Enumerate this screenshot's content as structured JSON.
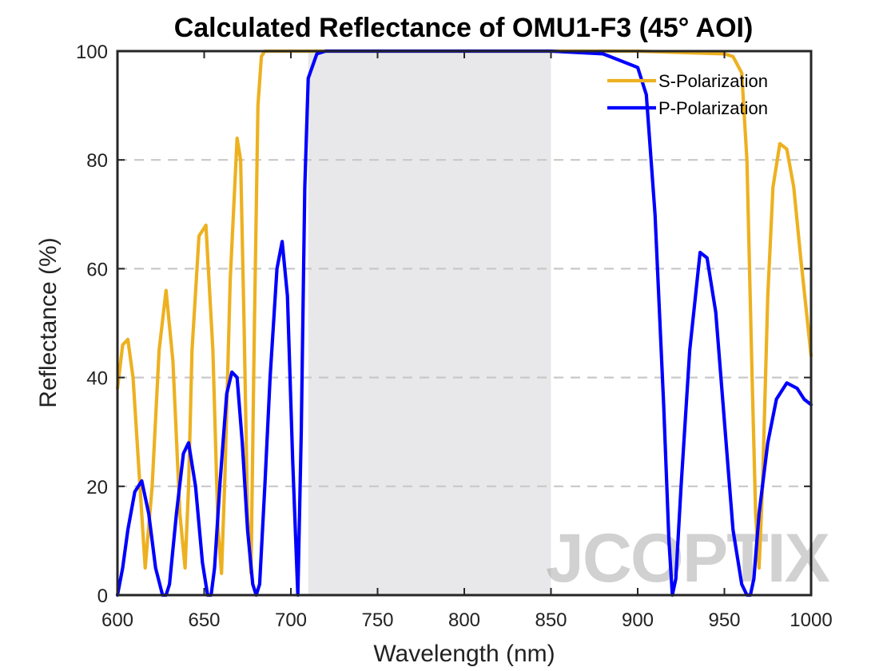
{
  "chart_data": {
    "type": "line",
    "title": "Calculated Reflectance of OMU1-F3 (45° AOI)",
    "xlabel": "Wavelength (nm)",
    "ylabel": "Reflectance (%)",
    "xlim": [
      600,
      1000
    ],
    "ylim": [
      0,
      100
    ],
    "xticks": [
      600,
      650,
      700,
      750,
      800,
      850,
      900,
      950,
      1000
    ],
    "yticks": [
      0,
      20,
      40,
      60,
      80,
      100
    ],
    "grid": "horizontal dashed",
    "legend_position": "top-right",
    "shaded_region": {
      "x": [
        710,
        850
      ],
      "color": "#e8e8ea"
    },
    "watermark": "JCOPTIX",
    "series": [
      {
        "name": "S-Polarization",
        "color": "#edb120",
        "x": [
          600,
          603,
          606,
          609,
          612,
          616,
          620,
          624,
          628,
          632,
          636,
          639,
          641,
          643,
          647,
          651,
          655,
          658,
          660,
          662,
          665,
          669,
          671,
          673,
          675,
          677,
          679,
          681,
          683,
          685,
          690,
          700,
          750,
          800,
          850,
          900,
          950,
          955,
          960,
          963,
          966,
          968,
          970,
          972,
          975,
          978,
          982,
          986,
          990,
          994,
          998,
          1000
        ],
        "y": [
          38,
          46,
          47,
          40,
          25,
          5,
          20,
          45,
          56,
          43,
          15,
          5,
          20,
          45,
          66,
          68,
          45,
          12,
          4,
          22,
          58,
          84,
          80,
          50,
          15,
          4,
          50,
          90,
          99,
          100,
          100,
          100,
          100,
          100,
          100,
          100,
          99.5,
          99,
          96,
          80,
          40,
          15,
          5,
          20,
          55,
          75,
          83,
          82,
          75,
          62,
          50,
          44
        ]
      },
      {
        "name": "P-Polarization",
        "color": "#0000ff",
        "x": [
          600,
          603,
          606,
          610,
          614,
          618,
          622,
          626,
          628,
          630,
          634,
          638,
          641,
          645,
          649,
          652,
          654,
          656,
          659,
          663,
          666,
          669,
          672,
          675,
          678,
          680,
          682,
          685,
          688,
          692,
          695,
          698,
          701,
          704,
          706,
          708,
          710,
          715,
          720,
          800,
          850,
          880,
          900,
          905,
          910,
          915,
          918,
          920,
          922,
          925,
          930,
          936,
          940,
          945,
          950,
          955,
          960,
          963,
          965,
          967,
          970,
          975,
          980,
          986,
          992,
          996,
          1000
        ],
        "y": [
          0,
          5,
          12,
          19,
          21,
          15,
          5,
          0,
          0,
          2,
          15,
          26,
          28,
          20,
          6,
          0,
          0,
          5,
          20,
          37,
          41,
          40,
          28,
          12,
          2,
          0,
          2,
          20,
          40,
          60,
          65,
          55,
          25,
          0,
          30,
          75,
          95,
          99.5,
          100,
          100,
          100,
          99.5,
          97,
          92,
          70,
          35,
          10,
          0,
          3,
          20,
          45,
          63,
          62,
          52,
          32,
          12,
          2,
          0,
          0,
          3,
          15,
          28,
          36,
          39,
          38,
          36,
          35
        ]
      }
    ]
  }
}
